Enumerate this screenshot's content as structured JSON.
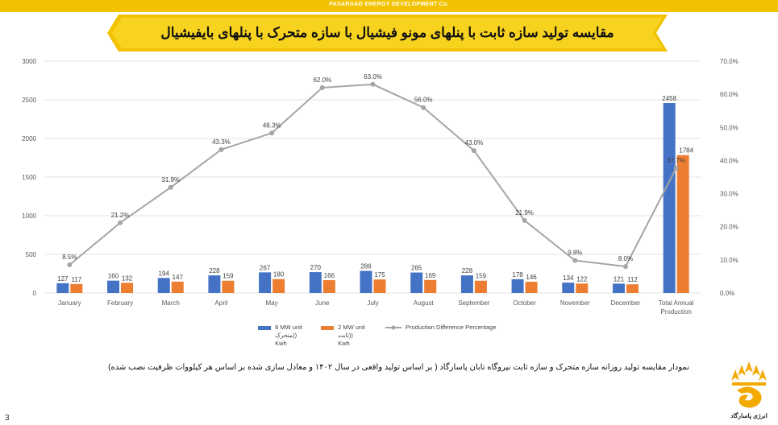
{
  "company": "PASARGAD ENERGY DEVELOPMENT Co.",
  "title": "مقایسه تولید سازه ثابت با پنلهای مونو فیشیال با سازه متحرک با پنلهای بایفیشیال",
  "caption": "نمودار مقایسه تولید روزانه سازه متحرک و سازه ثابت نیروگاه تابان پاسارگاد ( بر اساس تولید واقعی در سال ۱۴۰۲ و معادل سازی شده بر اساس هر کیلووات ظرفیت نصب شده)",
  "page_number": "3",
  "logo_text": "انرژی پاسارگاد",
  "colors": {
    "series_8mw": "#4472c4",
    "series_2mw": "#ed7d31",
    "line": "#a5a5a5",
    "brand": "#f2c200"
  },
  "legend": {
    "s1": [
      "8 MW unit",
      "متحرک))",
      "Kwh"
    ],
    "s2": [
      "2 MW unit",
      "ثابت))",
      "Kwh"
    ],
    "s3": [
      "Production Difference Percentage"
    ]
  },
  "chart_data": {
    "type": "bar",
    "categories": [
      "January",
      "February",
      "March",
      "April",
      "May",
      "June",
      "July",
      "August",
      "September",
      "October",
      "November",
      "December",
      "Total Annual Production"
    ],
    "series": [
      {
        "name": "8 MW unit (متحرک) Kwh",
        "type": "bar",
        "axis": "left",
        "values": [
          127,
          160,
          194,
          228,
          267,
          270,
          286,
          265,
          228,
          178,
          134,
          121,
          2458
        ],
        "labels": [
          "127",
          "160",
          "194",
          "228",
          "267",
          "270",
          "286",
          "265",
          "228",
          "178",
          "134",
          "121",
          "2458"
        ]
      },
      {
        "name": "2 MW unit (ثابت) Kwh",
        "type": "bar",
        "axis": "left",
        "values": [
          117,
          132,
          147,
          159,
          180,
          166,
          175,
          169,
          159,
          146,
          122,
          112,
          1784
        ],
        "labels": [
          "117",
          "132",
          "147",
          "159",
          "180",
          "166",
          "175",
          "169",
          "159",
          "146",
          "122",
          "112",
          "1784"
        ]
      },
      {
        "name": "Production Difference Percentage",
        "type": "line",
        "axis": "right",
        "values": [
          8.5,
          21.2,
          31.9,
          43.3,
          48.3,
          62.0,
          63.0,
          56.0,
          43.0,
          21.9,
          9.8,
          8.0,
          37.7
        ],
        "labels": [
          "8.5%",
          "21.2%",
          "31.9%",
          "43.3%",
          "48.3%",
          "62.0%",
          "63.0%",
          "56.0%",
          "43.0%",
          "21.9%",
          "9.8%",
          "8.0%",
          "37.7%"
        ]
      }
    ],
    "y_left": {
      "ylim": [
        0,
        3000
      ],
      "ticks": [
        "0",
        "500",
        "1000",
        "1500",
        "2000",
        "2500",
        "3000"
      ]
    },
    "y_right": {
      "ylim": [
        0,
        70
      ],
      "ticks": [
        "0.0%",
        "10.0%",
        "20.0%",
        "30.0%",
        "40.0%",
        "50.0%",
        "60.0%",
        "70.0%"
      ]
    },
    "grid": true,
    "legend_position": "bottom"
  }
}
